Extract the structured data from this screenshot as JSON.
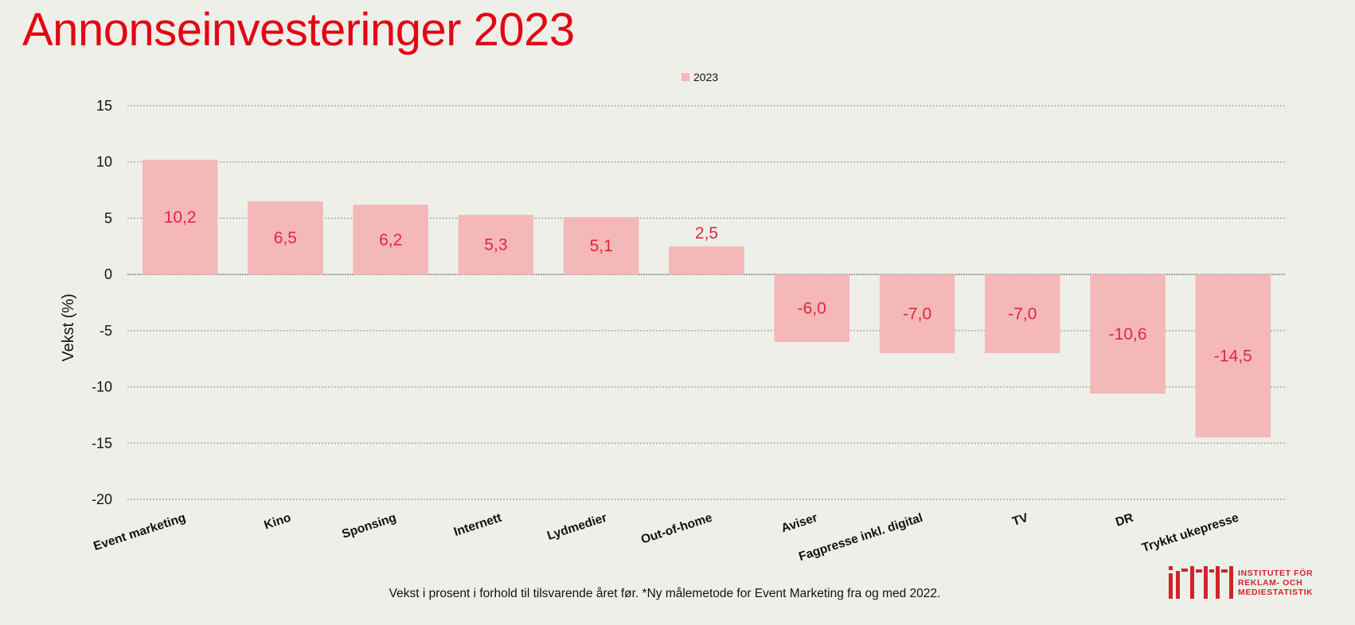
{
  "title": "Annonseinvesteringer 2023",
  "footnote": "Vekst i prosent i forhold til tilsvarende året før. *Ny målemetode for Event Marketing fra og med 2022.",
  "logo": {
    "mark": "irm",
    "text": "INSTITUTET FÖR\nREKLAM- OCH\nMEDIESTATISTIK",
    "color": "#d2232a"
  },
  "colors": {
    "title": "#e30613",
    "bar": "#f4b8b8",
    "data_label": "#e0283a",
    "background": "#efefea"
  },
  "chart_data": {
    "type": "bar",
    "categories": [
      "Event marketing",
      "Kino",
      "Sponsing",
      "Internett",
      "Lydmedier",
      "Out-of-home",
      "Aviser",
      "Fagpresse inkl. digital",
      "TV",
      "DR",
      "Trykkt ukepresse"
    ],
    "series": [
      {
        "name": "2023",
        "values": [
          10.2,
          6.5,
          6.2,
          5.3,
          5.1,
          2.5,
          -6.0,
          -7.0,
          -7.0,
          -10.6,
          -14.5
        ]
      }
    ],
    "data_labels": [
      "10,2",
      "6,5",
      "6,2",
      "5,3",
      "5,1",
      "2,5",
      "-6,0",
      "-7,0",
      "-7,0",
      "-10,6",
      "-14,5"
    ],
    "xlabel": "",
    "ylabel": "Vekst (%)",
    "ylim": [
      -20,
      15
    ],
    "yticks": [
      15,
      10,
      5,
      0,
      -5,
      -10,
      -15,
      -20
    ],
    "grid": true,
    "legend": "top-center"
  }
}
